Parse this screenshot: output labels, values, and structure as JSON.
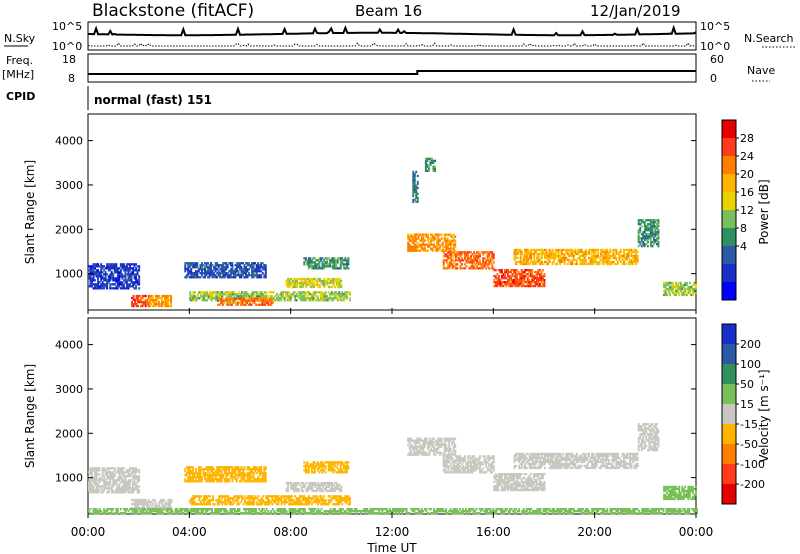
{
  "header": {
    "site": "Blackstone (fitACF)",
    "beam": "Beam 16",
    "date": "12/Jan/2019"
  },
  "summary": {
    "nsky_label": "N.Sky",
    "nsky_ticks": [
      "10^5",
      "10^0"
    ],
    "nsearch_label": "N.Search",
    "nsearch_ticks": [
      "10^5",
      "10^0"
    ],
    "freq_label": "Freq.",
    "freq_unit": "[MHz]",
    "freq_ticks": [
      "18",
      "8"
    ],
    "nave_label": "Nave",
    "nave_ticks": [
      "60",
      "0"
    ],
    "cpid_label": "CPID",
    "cpid_text": "normal (fast) 151"
  },
  "chart_data": [
    {
      "type": "heatmap",
      "name": "power",
      "ylabel": "Slant Range [km]",
      "xlabel": "Time UT",
      "x_ticks": [
        "00:00",
        "04:00",
        "08:00",
        "12:00",
        "16:00",
        "20:00",
        "00:00"
      ],
      "xlim_hours": [
        0,
        24
      ],
      "y_ticks": [
        1000,
        2000,
        3000,
        4000
      ],
      "ylim_km": [
        180,
        4600
      ],
      "colorbar": {
        "label": "Power [dB]",
        "ticks": [
          "28",
          "24",
          "20",
          "16",
          "12",
          "8",
          "4"
        ],
        "colors": [
          "#e60000",
          "#ff3b1a",
          "#ff7d00",
          "#ffb400",
          "#e8d200",
          "#7ac05a",
          "#2f8f5f",
          "#2a5aa6",
          "#1a2fc8",
          "#0000ff"
        ]
      },
      "regions": [
        {
          "t0": 0.0,
          "t1": 2.0,
          "r0": 650,
          "r1": 1200,
          "level": 4
        },
        {
          "t0": 1.7,
          "t1": 2.4,
          "r0": 250,
          "r1": 500,
          "level": 26
        },
        {
          "t0": 2.4,
          "t1": 3.3,
          "r0": 250,
          "r1": 480,
          "level": 22
        },
        {
          "t0": 4.0,
          "t1": 10.3,
          "r0": 380,
          "r1": 600,
          "level": 14
        },
        {
          "t0": 5.1,
          "t1": 7.3,
          "r0": 280,
          "r1": 450,
          "level": 24
        },
        {
          "t0": 3.8,
          "t1": 7.0,
          "r0": 900,
          "r1": 1250,
          "level": 6
        },
        {
          "t0": 7.8,
          "t1": 10.0,
          "r0": 680,
          "r1": 900,
          "level": 16
        },
        {
          "t0": 8.5,
          "t1": 10.3,
          "r0": 1100,
          "r1": 1350,
          "level": 10
        },
        {
          "t0": 12.6,
          "t1": 14.5,
          "r0": 1500,
          "r1": 1900,
          "level": 22
        },
        {
          "t0": 14.0,
          "t1": 16.0,
          "r0": 1100,
          "r1": 1500,
          "level": 24
        },
        {
          "t0": 16.0,
          "t1": 18.0,
          "r0": 700,
          "r1": 1100,
          "level": 26
        },
        {
          "t0": 16.8,
          "t1": 21.7,
          "r0": 1200,
          "r1": 1550,
          "level": 20
        },
        {
          "t0": 21.7,
          "t1": 22.5,
          "r0": 1600,
          "r1": 2200,
          "level": 10
        },
        {
          "t0": 22.7,
          "t1": 24.0,
          "r0": 500,
          "r1": 800,
          "level": 14
        },
        {
          "t0": 12.8,
          "t1": 13.0,
          "r0": 2600,
          "r1": 3300,
          "level": 8
        },
        {
          "t0": 13.3,
          "t1": 13.7,
          "r0": 3300,
          "r1": 3600,
          "level": 10
        }
      ]
    },
    {
      "type": "heatmap",
      "name": "velocity",
      "ylabel": "Slant Range [km]",
      "xlabel": "Time UT",
      "x_ticks": [
        "00:00",
        "04:00",
        "08:00",
        "12:00",
        "16:00",
        "20:00",
        "00:00"
      ],
      "xlim_hours": [
        0,
        24
      ],
      "y_ticks": [
        1000,
        2000,
        3000,
        4000
      ],
      "ylim_km": [
        180,
        4600
      ],
      "colorbar": {
        "label": "Velocity [m s⁻¹]",
        "ticks": [
          "200",
          "100",
          "50",
          "15",
          "-15",
          "-50",
          "-100",
          "-200"
        ],
        "colors": [
          "#1a2fc8",
          "#2a5aa6",
          "#2f8f5f",
          "#7ac05a",
          "#c8c8c0",
          "#ffb400",
          "#ff7d00",
          "#ff3b1a",
          "#e60000"
        ]
      },
      "regions": [
        {
          "t0": 0.0,
          "t1": 2.0,
          "r0": 650,
          "r1": 1200,
          "level": 0
        },
        {
          "t0": 1.7,
          "t1": 3.3,
          "r0": 250,
          "r1": 500,
          "level": 0
        },
        {
          "t0": 4.0,
          "t1": 10.3,
          "r0": 380,
          "r1": 600,
          "level": -40
        },
        {
          "t0": 3.8,
          "t1": 7.0,
          "r0": 900,
          "r1": 1250,
          "level": -40
        },
        {
          "t0": 7.8,
          "t1": 10.0,
          "r0": 680,
          "r1": 900,
          "level": 0
        },
        {
          "t0": 8.5,
          "t1": 10.3,
          "r0": 1100,
          "r1": 1350,
          "level": -30
        },
        {
          "t0": 12.6,
          "t1": 14.5,
          "r0": 1500,
          "r1": 1900,
          "level": 0
        },
        {
          "t0": 14.0,
          "t1": 16.0,
          "r0": 1100,
          "r1": 1500,
          "level": 0
        },
        {
          "t0": 16.0,
          "t1": 18.0,
          "r0": 700,
          "r1": 1100,
          "level": 0
        },
        {
          "t0": 16.8,
          "t1": 21.7,
          "r0": 1200,
          "r1": 1550,
          "level": 0
        },
        {
          "t0": 21.7,
          "t1": 22.5,
          "r0": 1600,
          "r1": 2200,
          "level": 0
        },
        {
          "t0": 22.7,
          "t1": 24.0,
          "r0": 500,
          "r1": 800,
          "level": 30
        },
        {
          "t0": 0.0,
          "t1": 24.0,
          "r0": 180,
          "r1": 300,
          "level": 30
        }
      ]
    }
  ]
}
